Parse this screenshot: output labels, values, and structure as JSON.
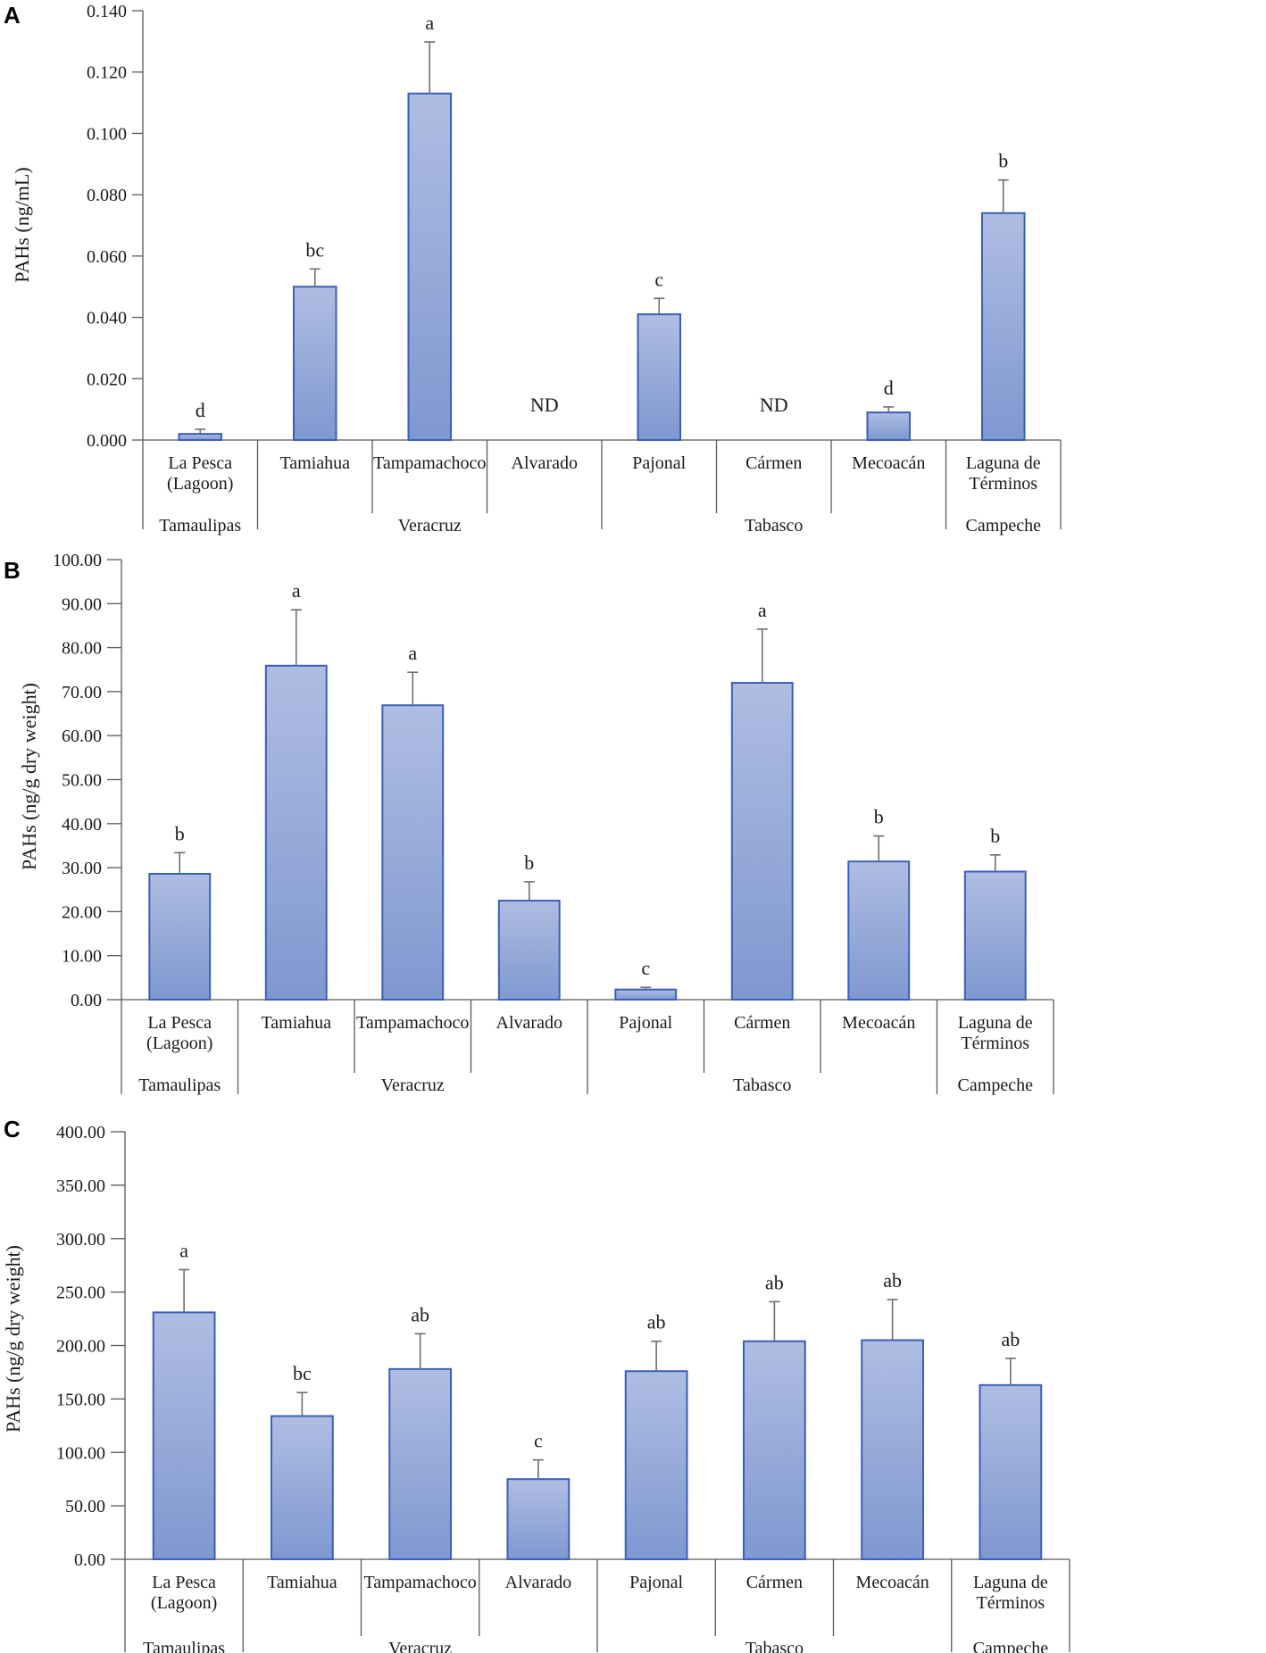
{
  "chart_data": [
    {
      "type": "bar",
      "panel": "A",
      "ylabel": "PAHs (ng/mL)",
      "ylim": [
        0,
        0.14
      ],
      "yticks": [
        "0.000",
        "0.020",
        "0.040",
        "0.060",
        "0.080",
        "0.100",
        "0.120",
        "0.140"
      ],
      "categories": [
        "La Pesca (Lagoon)",
        "Tamiahua",
        "Tampamachoco",
        "Alvarado",
        "Pajonal",
        "Cármen",
        "Mecoacán",
        "Laguna de Términos"
      ],
      "category_lines": [
        [
          "La Pesca",
          "(Lagoon)"
        ],
        [
          "Tamiahua"
        ],
        [
          "Tampamachoco"
        ],
        [
          "Alvarado"
        ],
        [
          "Pajonal"
        ],
        [
          "Cármen"
        ],
        [
          "Mecoacán"
        ],
        [
          "Laguna de",
          "Términos"
        ]
      ],
      "groups": [
        {
          "name": "Tamaulipas",
          "span": [
            0,
            0
          ]
        },
        {
          "name": "Veracruz",
          "span": [
            1,
            3
          ]
        },
        {
          "name": "Tabasco",
          "span": [
            4,
            6
          ]
        },
        {
          "name": "Campeche",
          "span": [
            7,
            7
          ]
        }
      ],
      "values": [
        0.002,
        0.05,
        0.113,
        null,
        0.041,
        null,
        0.009,
        0.074
      ],
      "errors": [
        0.0015,
        0.0058,
        0.0168,
        null,
        0.0052,
        null,
        0.0018,
        0.0108
      ],
      "labels": [
        "d",
        "bc",
        "a",
        "ND",
        "c",
        "ND",
        "d",
        "b"
      ]
    },
    {
      "type": "bar",
      "panel": "B",
      "ylabel": "PAHs (ng/g dry weight)",
      "ylim": [
        0,
        100
      ],
      "yticks": [
        "0.00",
        "10.00",
        "20.00",
        "30.00",
        "40.00",
        "50.00",
        "60.00",
        "70.00",
        "80.00",
        "90.00",
        "100.00"
      ],
      "categories": [
        "La Pesca (Lagoon)",
        "Tamiahua",
        "Tampamachoco",
        "Alvarado",
        "Pajonal",
        "Cármen",
        "Mecoacán",
        "Laguna de Términos"
      ],
      "category_lines": [
        [
          "La Pesca",
          "(Lagoon)"
        ],
        [
          "Tamiahua"
        ],
        [
          "Tampamachoco"
        ],
        [
          "Alvarado"
        ],
        [
          "Pajonal"
        ],
        [
          "Cármen"
        ],
        [
          "Mecoacán"
        ],
        [
          "Laguna de",
          "Términos"
        ]
      ],
      "groups": [
        {
          "name": "Tamaulipas",
          "span": [
            0,
            0
          ]
        },
        {
          "name": "Veracruz",
          "span": [
            1,
            3
          ]
        },
        {
          "name": "Tabasco",
          "span": [
            4,
            6
          ]
        },
        {
          "name": "Campeche",
          "span": [
            7,
            7
          ]
        }
      ],
      "values": [
        28.6,
        75.9,
        66.9,
        22.5,
        2.3,
        72.0,
        31.4,
        29.1
      ],
      "errors": [
        4.8,
        12.7,
        7.5,
        4.3,
        0.5,
        12.2,
        5.8,
        3.8
      ],
      "labels": [
        "b",
        "a",
        "a",
        "b",
        "c",
        "a",
        "b",
        "b"
      ]
    },
    {
      "type": "bar",
      "panel": "C",
      "ylabel": "PAHs (ng/g dry weight)",
      "ylim": [
        0,
        400
      ],
      "yticks": [
        "0.00",
        "50.00",
        "100.00",
        "150.00",
        "200.00",
        "250.00",
        "300.00",
        "350.00",
        "400.00"
      ],
      "categories": [
        "La Pesca (Lagoon)",
        "Tamiahua",
        "Tampamachoco",
        "Alvarado",
        "Pajonal",
        "Cármen",
        "Mecoacán",
        "Laguna de Términos"
      ],
      "category_lines": [
        [
          "La Pesca",
          "(Lagoon)"
        ],
        [
          "Tamiahua"
        ],
        [
          "Tampamachoco"
        ],
        [
          "Alvarado"
        ],
        [
          "Pajonal"
        ],
        [
          "Cármen"
        ],
        [
          "Mecoacán"
        ],
        [
          "Laguna de",
          "Términos"
        ]
      ],
      "groups": [
        {
          "name": "Tamaulipas",
          "span": [
            0,
            0
          ]
        },
        {
          "name": "Veracruz",
          "span": [
            1,
            3
          ]
        },
        {
          "name": "Tabasco",
          "span": [
            4,
            6
          ]
        },
        {
          "name": "Campeche",
          "span": [
            7,
            7
          ]
        }
      ],
      "values": [
        231.0,
        134.0,
        178.0,
        75.0,
        176.0,
        204.0,
        205.0,
        163.0
      ],
      "errors": [
        40.0,
        22.0,
        33.0,
        18.0,
        28.0,
        37.0,
        38.0,
        25.0
      ],
      "labels": [
        "a",
        "bc",
        "ab",
        "c",
        "ab",
        "ab",
        "ab",
        "ab"
      ]
    }
  ],
  "colors": {
    "bar_top": "#afbde2",
    "bar_bottom": "#7f98d0",
    "bar_edge": "#3a5fb8",
    "axis": "#595959",
    "error": "#6e6e6e"
  }
}
